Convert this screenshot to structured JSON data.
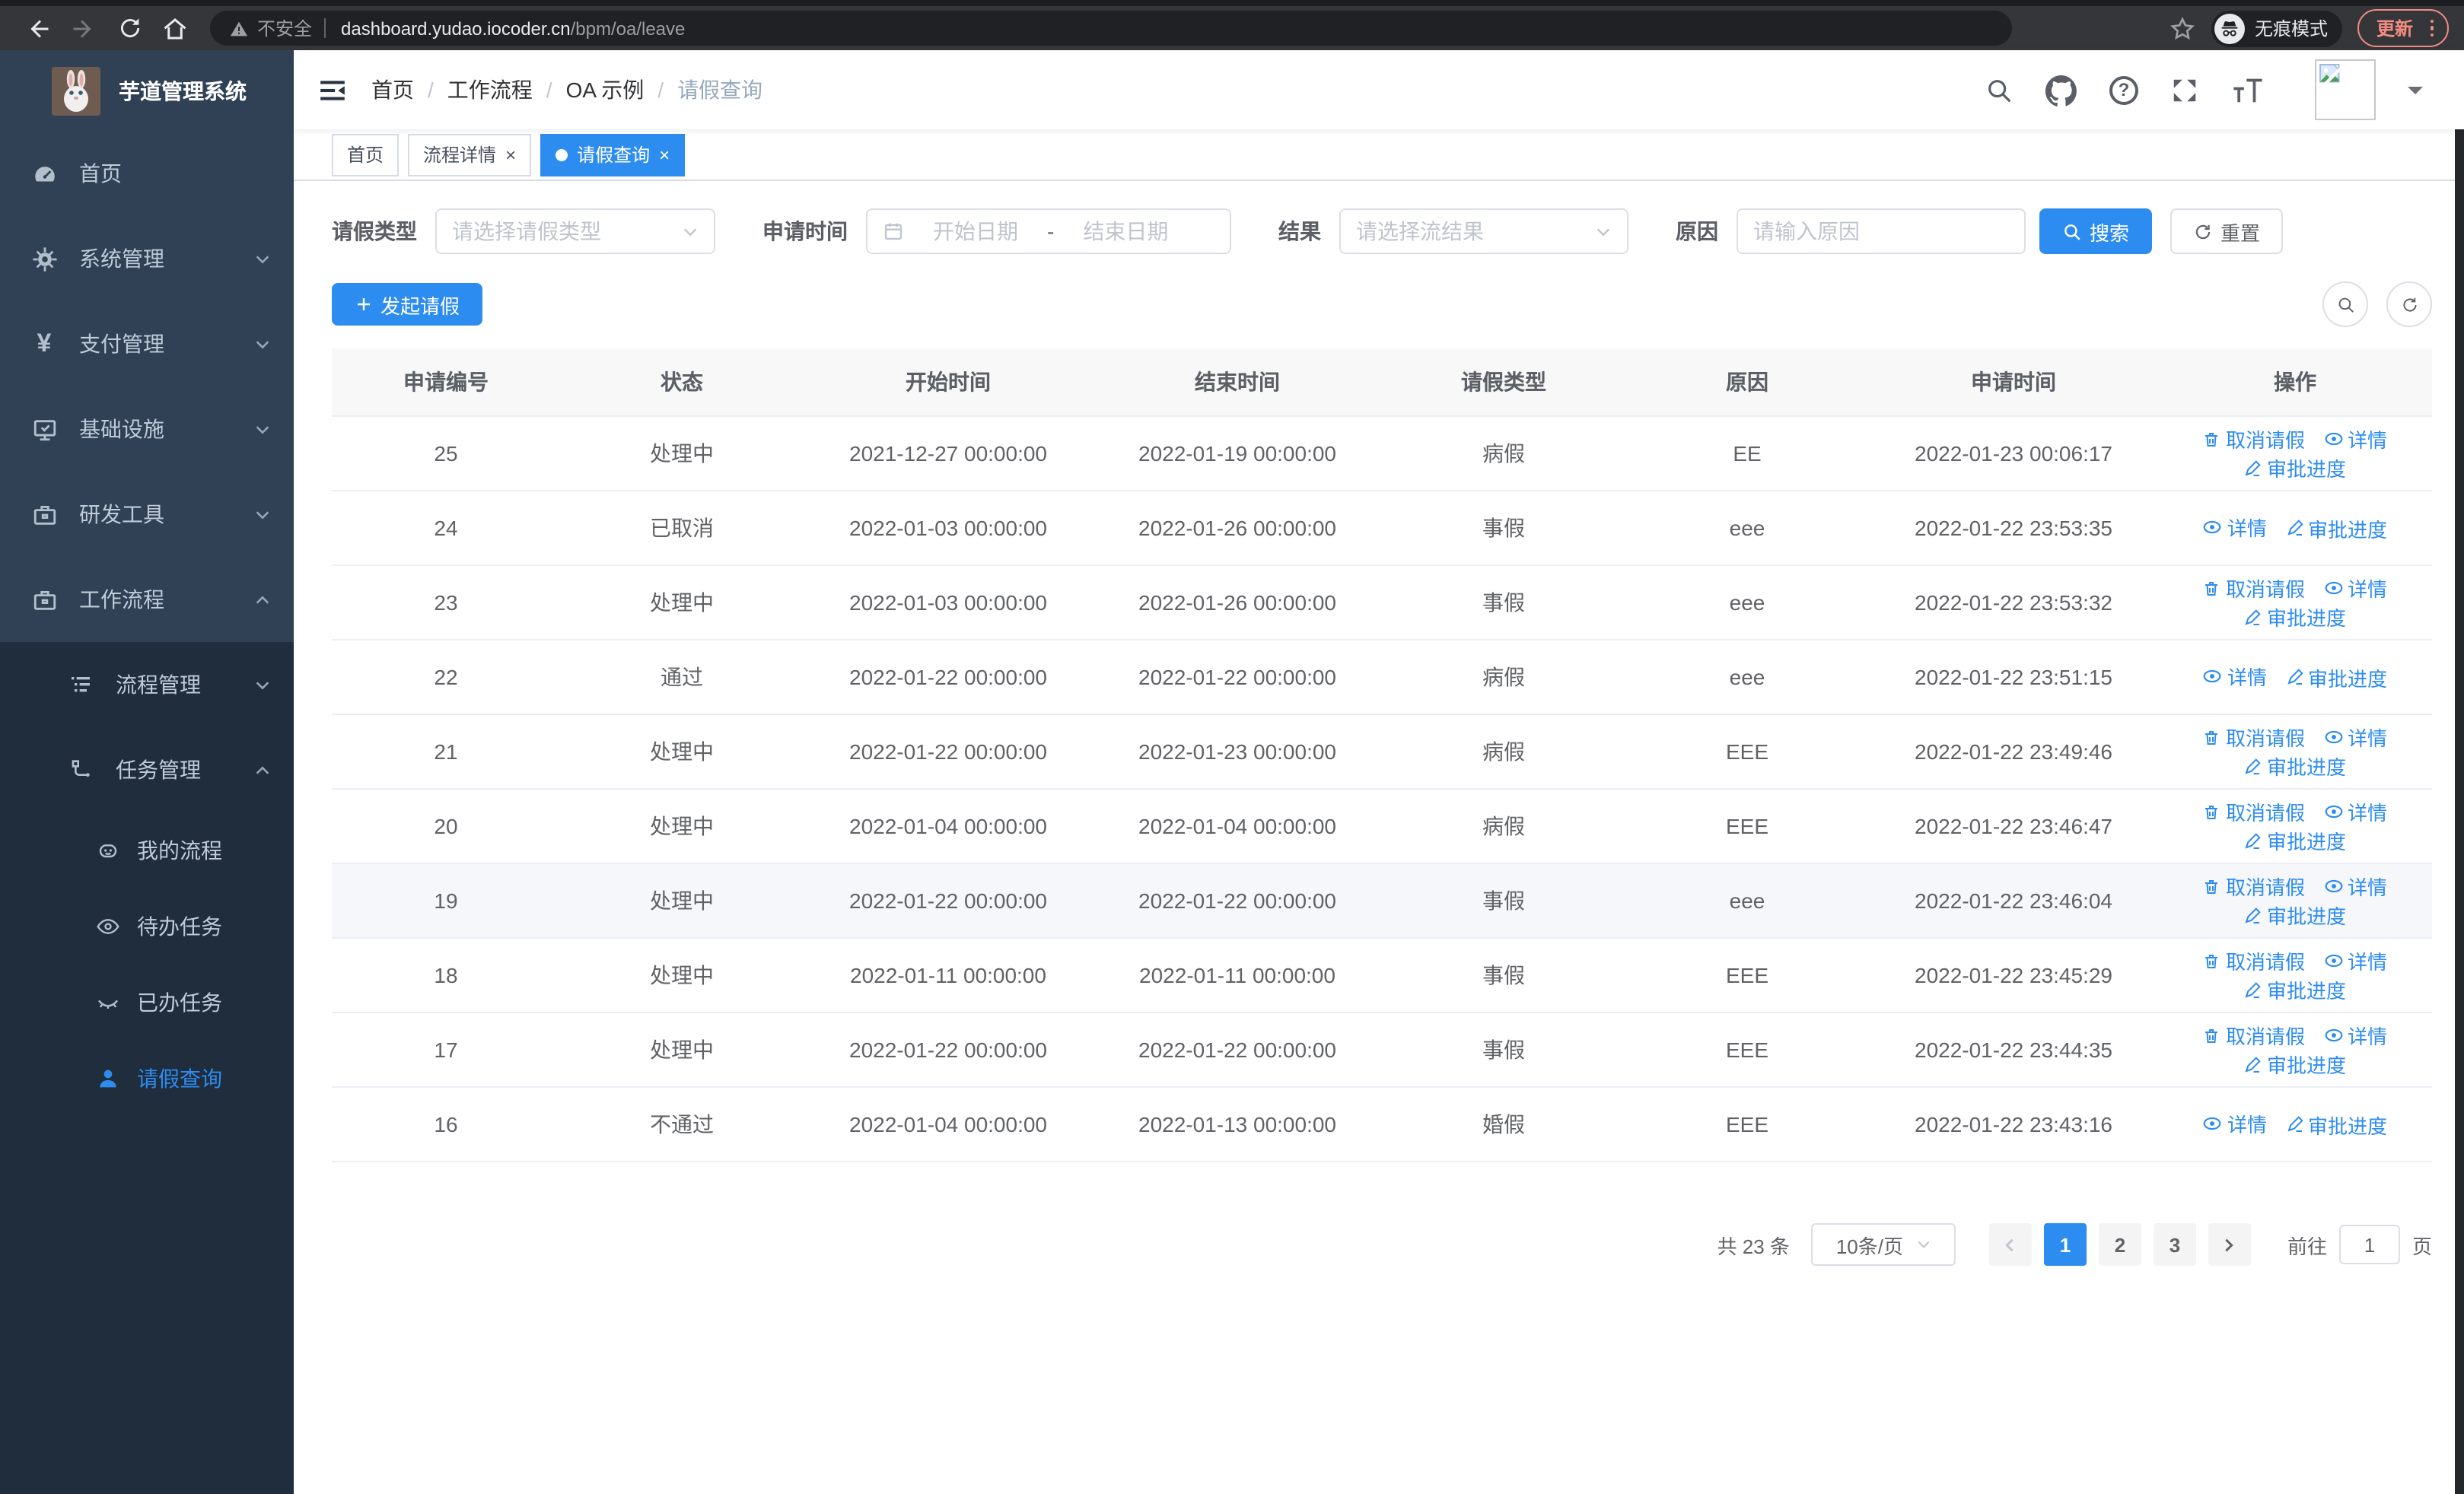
{
  "browser": {
    "security_label": "不安全",
    "url_host": "dashboard.yudao.iocoder.cn",
    "url_path": "/bpm/oa/leave",
    "incognito_label": "无痕模式",
    "update_label": "更新"
  },
  "icons": {
    "close": "×",
    "question": "?",
    "yen": "¥"
  },
  "sidebar": {
    "app_title": "芋道管理系统",
    "menu": {
      "home": "首页",
      "system": "系统管理",
      "pay": "支付管理",
      "infra": "基础设施",
      "dev": "研发工具",
      "workflow": "工作流程",
      "process_mgmt": "流程管理",
      "task_mgmt": "任务管理",
      "my_process": "我的流程",
      "todo_task": "待办任务",
      "done_task": "已办任务",
      "leave_query": "请假查询"
    }
  },
  "header": {
    "breadcrumbs": [
      "首页",
      "工作流程",
      "OA 示例",
      "请假查询"
    ]
  },
  "tabs": [
    {
      "label": "首页",
      "closable": false,
      "active": false
    },
    {
      "label": "流程详情",
      "closable": true,
      "active": false
    },
    {
      "label": "请假查询",
      "closable": true,
      "active": true
    }
  ],
  "filters": {
    "leave_type_label": "请假类型",
    "leave_type_placeholder": "请选择请假类型",
    "apply_time_label": "申请时间",
    "start_date_placeholder": "开始日期",
    "date_separator": "-",
    "end_date_placeholder": "结束日期",
    "result_label": "结果",
    "result_placeholder": "请选择流结果",
    "reason_label": "原因",
    "reason_placeholder": "请输入原因",
    "search_label": "搜索",
    "reset_label": "重置"
  },
  "toolbar": {
    "create_label": "发起请假"
  },
  "table": {
    "headers": [
      "申请编号",
      "状态",
      "开始时间",
      "结束时间",
      "请假类型",
      "原因",
      "申请时间",
      "操作"
    ],
    "action_labels": {
      "cancel": "取消请假",
      "detail": "详情",
      "progress": "审批进度"
    },
    "rows": [
      {
        "id": "25",
        "status": "处理中",
        "start": "2021-12-27 00:00:00",
        "end": "2022-01-19 00:00:00",
        "type": "病假",
        "reason": "EE",
        "applyTime": "2022-01-23 00:06:17",
        "actions": [
          "cancel",
          "detail",
          "progress"
        ],
        "highlight": false
      },
      {
        "id": "24",
        "status": "已取消",
        "start": "2022-01-03 00:00:00",
        "end": "2022-01-26 00:00:00",
        "type": "事假",
        "reason": "eee",
        "applyTime": "2022-01-22 23:53:35",
        "actions": [
          "detail",
          "progress"
        ],
        "highlight": false
      },
      {
        "id": "23",
        "status": "处理中",
        "start": "2022-01-03 00:00:00",
        "end": "2022-01-26 00:00:00",
        "type": "事假",
        "reason": "eee",
        "applyTime": "2022-01-22 23:53:32",
        "actions": [
          "cancel",
          "detail",
          "progress"
        ],
        "highlight": false
      },
      {
        "id": "22",
        "status": "通过",
        "start": "2022-01-22 00:00:00",
        "end": "2022-01-22 00:00:00",
        "type": "病假",
        "reason": "eee",
        "applyTime": "2022-01-22 23:51:15",
        "actions": [
          "detail",
          "progress"
        ],
        "highlight": false
      },
      {
        "id": "21",
        "status": "处理中",
        "start": "2022-01-22 00:00:00",
        "end": "2022-01-23 00:00:00",
        "type": "病假",
        "reason": "EEE",
        "applyTime": "2022-01-22 23:49:46",
        "actions": [
          "cancel",
          "detail",
          "progress"
        ],
        "highlight": false
      },
      {
        "id": "20",
        "status": "处理中",
        "start": "2022-01-04 00:00:00",
        "end": "2022-01-04 00:00:00",
        "type": "病假",
        "reason": "EEE",
        "applyTime": "2022-01-22 23:46:47",
        "actions": [
          "cancel",
          "detail",
          "progress"
        ],
        "highlight": false
      },
      {
        "id": "19",
        "status": "处理中",
        "start": "2022-01-22 00:00:00",
        "end": "2022-01-22 00:00:00",
        "type": "事假",
        "reason": "eee",
        "applyTime": "2022-01-22 23:46:04",
        "actions": [
          "cancel",
          "detail",
          "progress"
        ],
        "highlight": true
      },
      {
        "id": "18",
        "status": "处理中",
        "start": "2022-01-11 00:00:00",
        "end": "2022-01-11 00:00:00",
        "type": "事假",
        "reason": "EEE",
        "applyTime": "2022-01-22 23:45:29",
        "actions": [
          "cancel",
          "detail",
          "progress"
        ],
        "highlight": false
      },
      {
        "id": "17",
        "status": "处理中",
        "start": "2022-01-22 00:00:00",
        "end": "2022-01-22 00:00:00",
        "type": "事假",
        "reason": "EEE",
        "applyTime": "2022-01-22 23:44:35",
        "actions": [
          "cancel",
          "detail",
          "progress"
        ],
        "highlight": false
      },
      {
        "id": "16",
        "status": "不通过",
        "start": "2022-01-04 00:00:00",
        "end": "2022-01-13 00:00:00",
        "type": "婚假",
        "reason": "EEE",
        "applyTime": "2022-01-22 23:43:16",
        "actions": [
          "detail",
          "progress"
        ],
        "highlight": false
      }
    ]
  },
  "pagination": {
    "total_label": "共 23 条",
    "page_size_label": "10条/页",
    "pages": [
      "1",
      "2",
      "3"
    ],
    "active_page": "1",
    "goto_label": "前往",
    "goto_value": "1",
    "page_unit_label": "页"
  },
  "colors": {
    "primary": "#2d8cf0",
    "sidebar_bg": "#304156",
    "submenu_bg": "#1f2d3d",
    "update_accent": "#f28b82"
  }
}
